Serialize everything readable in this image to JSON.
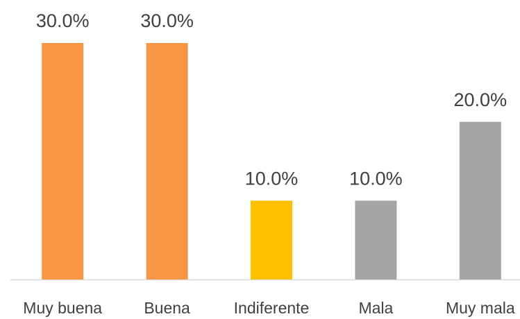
{
  "chart_data": {
    "type": "bar",
    "categories": [
      "Muy buena",
      "Buena",
      "Indiferente",
      "Mala",
      "Muy mala"
    ],
    "values": [
      30,
      30,
      10,
      10,
      20
    ],
    "value_labels": [
      "30.0%",
      "30.0%",
      "10.0%",
      "10.0%",
      "20.0%"
    ],
    "colors": [
      "#F79646",
      "#F79646",
      "#FFC000",
      "#A5A5A5",
      "#A5A5A5"
    ]
  }
}
